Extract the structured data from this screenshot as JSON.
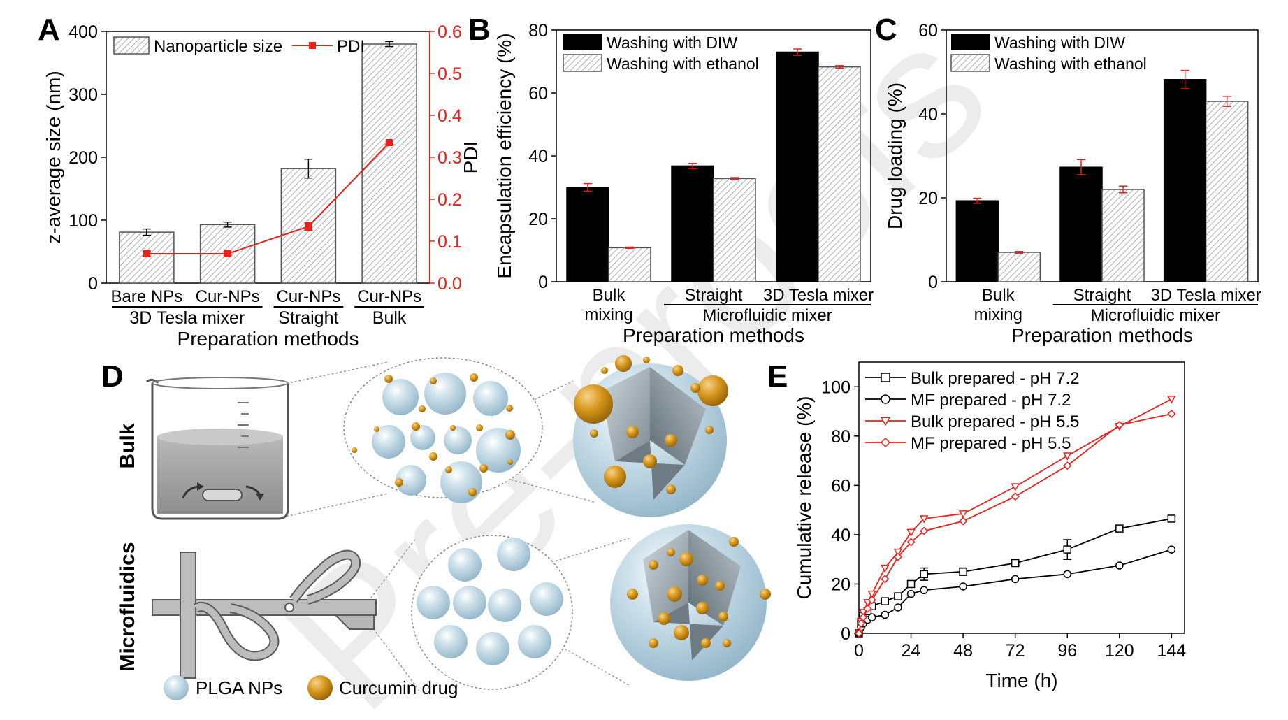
{
  "colors": {
    "red": "#e8211d",
    "black": "#000000",
    "plga": "#bcd6e4",
    "curcumin": "#d3951a",
    "hatch_fill": "#ffffff",
    "watermark": "#ebebeb"
  },
  "watermark": "Pre-proofs",
  "chart_data": [
    {
      "panel": "A",
      "type": "bar",
      "categories": [
        "Bare NPs",
        "Cur-NPs",
        "Cur-NPs",
        "Cur-NPs"
      ],
      "groups": [
        {
          "label": "3D Tesla mixer",
          "span": [
            0,
            1
          ]
        },
        {
          "label": "Straight",
          "span": [
            2,
            2
          ]
        },
        {
          "label": "Bulk",
          "span": [
            3,
            3
          ]
        }
      ],
      "series": [
        {
          "name": "Nanoparticle size",
          "kind": "bar",
          "axis": "left",
          "values": [
            81,
            93,
            182,
            380
          ],
          "errors": [
            5,
            4,
            15,
            4
          ]
        },
        {
          "name": "PDI",
          "kind": "line",
          "axis": "right",
          "values": [
            0.07,
            0.07,
            0.135,
            0.335
          ],
          "errors": [
            0.006,
            0.004,
            0.009,
            0.004
          ]
        }
      ],
      "xlabel": "Preparation methods",
      "ylabel": "z-average size (nm)",
      "y2label": "PDI",
      "ylim": [
        0,
        400
      ],
      "yticks": [
        0,
        100,
        200,
        300,
        400
      ],
      "y2lim": [
        0,
        0.6
      ],
      "y2ticks": [
        "0.0",
        "0.1",
        "0.2",
        "0.3",
        "0.4",
        "0.5",
        "0.6"
      ],
      "legend": "top"
    },
    {
      "panel": "B",
      "type": "bar",
      "categories": [
        "Bulk\nmixing",
        "Straight",
        "3D Tesla mixer"
      ],
      "groups": [
        {
          "label": "Microfluidic mixer",
          "span": [
            1,
            2
          ]
        }
      ],
      "series": [
        {
          "name": "Washing with DIW",
          "values": [
            30,
            36.8,
            73
          ],
          "errors": [
            1.2,
            0.8,
            1.0
          ]
        },
        {
          "name": "Washing with ethanol",
          "values": [
            10.8,
            32.8,
            68.3
          ],
          "errors": [
            0.2,
            0.3,
            0.4
          ]
        }
      ],
      "xlabel": "Preparation methods",
      "ylabel": "Encapsulation efficiency (%)",
      "ylim": [
        0,
        80
      ],
      "yticks": [
        0,
        20,
        40,
        60,
        80
      ],
      "legend": "top-left"
    },
    {
      "panel": "C",
      "type": "bar",
      "categories": [
        "Bulk\nmixing",
        "Straight",
        "3D Tesla mixer"
      ],
      "groups": [
        {
          "label": "Microfluidic mixer",
          "span": [
            1,
            2
          ]
        }
      ],
      "series": [
        {
          "name": "Washing with DIW",
          "values": [
            19.3,
            27.3,
            48.2
          ],
          "errors": [
            0.6,
            1.8,
            2.2
          ]
        },
        {
          "name": "Washing with ethanol",
          "values": [
            7,
            22,
            43
          ],
          "errors": [
            0.2,
            0.8,
            1.2
          ]
        }
      ],
      "xlabel": "Preparation methods",
      "ylabel": "Drug loading (%)",
      "ylim": [
        0,
        60
      ],
      "yticks": [
        0,
        20,
        40,
        60
      ],
      "legend": "top-left"
    },
    {
      "panel": "E",
      "type": "line",
      "xlabel": "Time (h)",
      "ylabel": "Cumulative release (%)",
      "xlim": [
        0,
        150
      ],
      "xticks": [
        0,
        24,
        48,
        72,
        96,
        120,
        144
      ],
      "ylim": [
        0,
        110
      ],
      "yticks": [
        0,
        20,
        40,
        60,
        80,
        100
      ],
      "legend": "top-left",
      "series": [
        {
          "name": "Bulk prepared - pH 7.2",
          "color": "#000000",
          "marker": "square",
          "x": [
            0,
            1,
            2,
            4,
            6,
            12,
            18,
            24,
            30,
            48,
            72,
            96,
            120,
            144
          ],
          "y": [
            0,
            4,
            7,
            9,
            11,
            13,
            15,
            20,
            24,
            25,
            28.5,
            34,
            42.5,
            46.5
          ],
          "err": [
            0,
            0,
            0,
            0,
            0,
            0,
            0,
            0,
            2.5,
            1.5,
            1,
            4,
            1,
            1
          ]
        },
        {
          "name": "MF prepared - pH 7.2",
          "color": "#000000",
          "marker": "circle",
          "x": [
            0,
            1,
            2,
            4,
            6,
            12,
            18,
            24,
            30,
            48,
            72,
            96,
            120,
            144
          ],
          "y": [
            0,
            2.5,
            4,
            5.5,
            6.5,
            7.5,
            10.5,
            16,
            17.5,
            19,
            22,
            24,
            27.5,
            34
          ],
          "err": [
            0,
            0,
            0,
            0,
            0,
            0,
            0,
            0,
            0,
            0,
            0,
            0,
            0,
            0
          ]
        },
        {
          "name": "Bulk prepared - pH 5.5",
          "color": "#e8211d",
          "marker": "triangle-down",
          "x": [
            0,
            1,
            2,
            4,
            6,
            12,
            18,
            24,
            30,
            48,
            72,
            96,
            120,
            144
          ],
          "y": [
            0,
            5,
            8.5,
            12.5,
            16,
            26.5,
            33,
            41,
            46.5,
            48.5,
            59.5,
            72,
            84,
            95
          ],
          "err": [
            0,
            0,
            0,
            0,
            0,
            0,
            0,
            0,
            0,
            0,
            0,
            0,
            0,
            0
          ]
        },
        {
          "name": "MF prepared - pH 5.5",
          "color": "#e8211d",
          "marker": "diamond",
          "x": [
            0,
            1,
            2,
            4,
            6,
            12,
            18,
            24,
            30,
            48,
            72,
            96,
            120,
            144
          ],
          "y": [
            0,
            4,
            6.5,
            10,
            13.5,
            22,
            31,
            37,
            41.5,
            45.5,
            55.5,
            68,
            84.5,
            89
          ],
          "err": [
            0,
            0,
            0,
            0,
            0,
            0,
            0,
            0,
            0,
            0,
            0,
            0,
            0,
            0
          ]
        }
      ]
    }
  ],
  "schematic": {
    "panel": "D",
    "row_labels": [
      "Bulk",
      "Microfluidics"
    ],
    "legend": [
      "PLGA NPs",
      "Curcumin drug"
    ]
  }
}
